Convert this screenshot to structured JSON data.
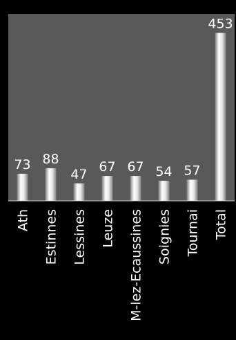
{
  "chart_data": {
    "type": "bar",
    "title": "",
    "xlabel": "",
    "ylabel": "",
    "categories": [
      "Ath",
      "Estinnes",
      "Lessines",
      "Leuze",
      "M-lez-Ecaussines",
      "Soignies",
      "Tournai",
      "Total"
    ],
    "values": [
      73,
      88,
      47,
      67,
      67,
      54,
      57,
      453
    ],
    "ylim": [
      0,
      480
    ],
    "grid": false,
    "legend": "none"
  },
  "colors": {
    "page_background": "#000000",
    "plot_background": "#595959",
    "bar_light": "#ffffff",
    "bar_dark": "#8c8c8c",
    "axis_line": "#d9d9d9",
    "text": "#ffffff"
  }
}
